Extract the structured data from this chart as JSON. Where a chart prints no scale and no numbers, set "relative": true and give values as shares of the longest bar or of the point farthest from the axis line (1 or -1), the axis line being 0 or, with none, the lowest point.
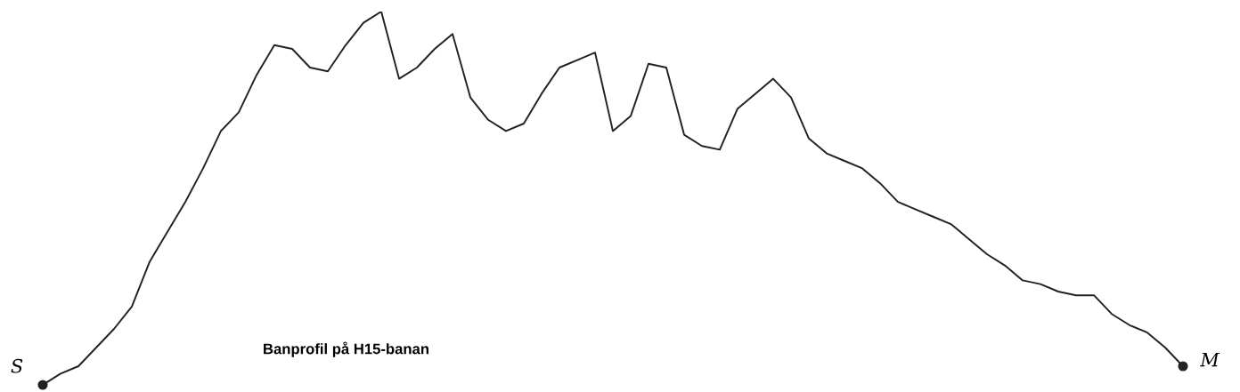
{
  "chart_data": {
    "type": "line",
    "title": "Banprofil på H15-banan",
    "relative": true,
    "color": "#222222",
    "categories": [
      null,
      null,
      null,
      null,
      null,
      null,
      null,
      null,
      null,
      null,
      null,
      null,
      null,
      null,
      null,
      null,
      null,
      null,
      null,
      null,
      null,
      null,
      null,
      null,
      null,
      null,
      null,
      null,
      null,
      null,
      null,
      null,
      null,
      null,
      null,
      null,
      null,
      null,
      null,
      null,
      null,
      null,
      null,
      null,
      null,
      null,
      null,
      null,
      null,
      null,
      null,
      null,
      null,
      null,
      null,
      null,
      null,
      null,
      null,
      null,
      null,
      null,
      null,
      null,
      null
    ],
    "values": [
      0,
      0.03,
      0.05,
      0.1,
      0.15,
      0.21,
      0.33,
      0.41,
      0.49,
      0.58,
      0.68,
      0.73,
      0.83,
      0.91,
      0.9,
      0.85,
      0.84,
      0.91,
      0.97,
      1,
      0.82,
      0.85,
      0.9,
      0.94,
      0.77,
      0.71,
      0.68,
      0.7,
      0.78,
      0.85,
      0.87,
      0.89,
      0.68,
      0.72,
      0.86,
      0.85,
      0.67,
      0.64,
      0.63,
      0.74,
      0.78,
      0.82,
      0.77,
      0.66,
      0.62,
      0.6,
      0.58,
      0.54,
      0.49,
      0.47,
      0.45,
      0.43,
      0.39,
      0.35,
      0.32,
      0.28,
      0.27,
      0.25,
      0.24,
      0.24,
      0.19,
      0.16,
      0.14,
      0.1,
      0.05
    ],
    "annotations": [
      "S",
      "M"
    ]
  }
}
